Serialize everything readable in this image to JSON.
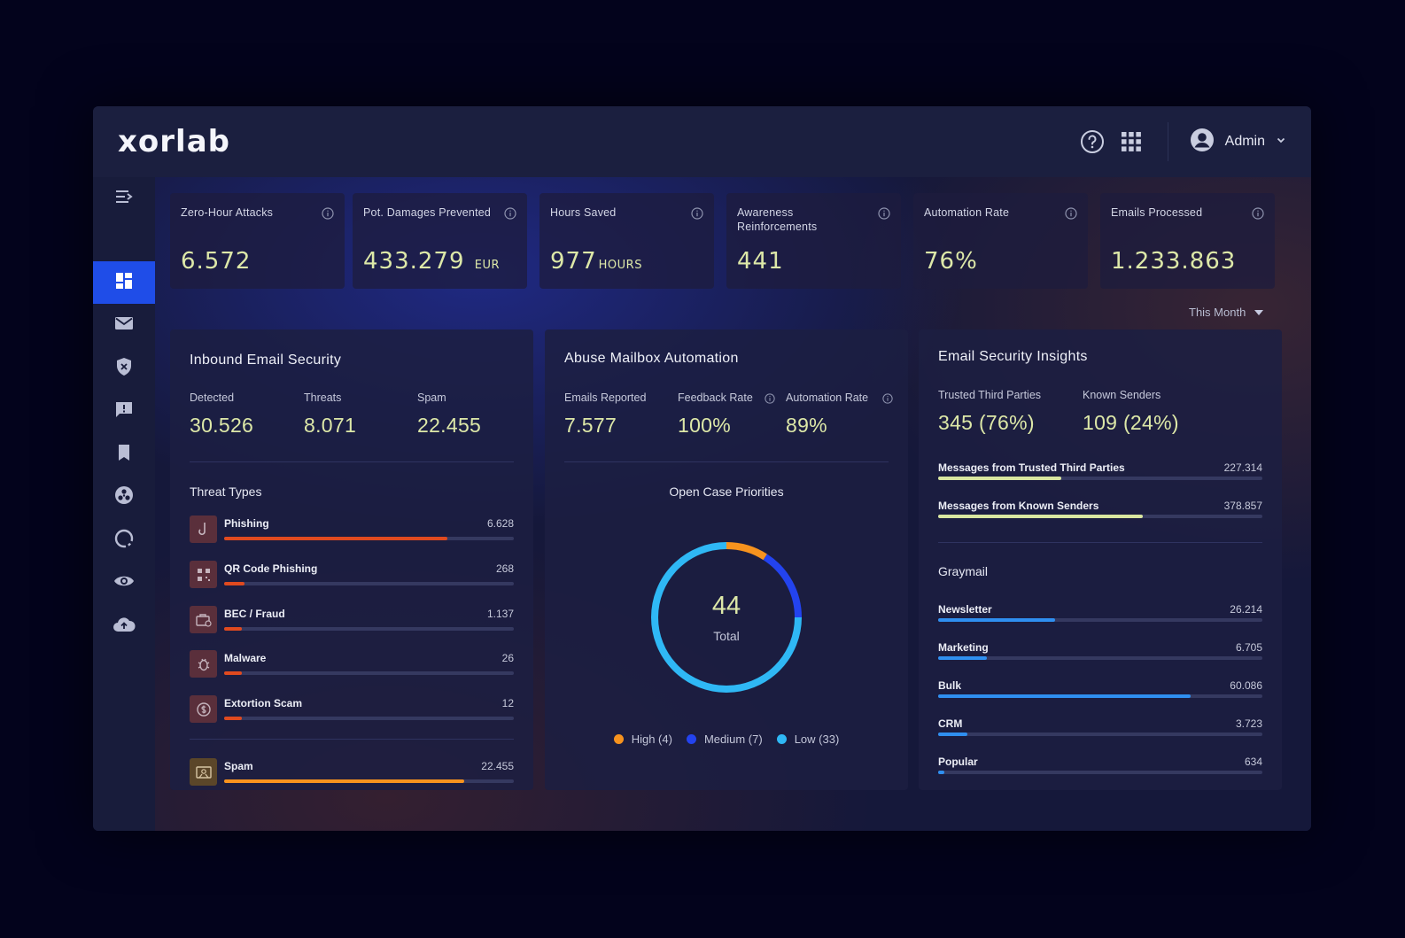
{
  "app": {
    "logo": "xorlab"
  },
  "topbar": {
    "user": "Admin",
    "help_icon": "help-circle-icon",
    "apps_icon": "apps-grid-icon"
  },
  "sidebar": {
    "items": [
      {
        "icon": "menu-collapse-icon"
      },
      {
        "icon": "dashboard-icon",
        "active": true
      },
      {
        "icon": "mail-icon"
      },
      {
        "icon": "shield-x-icon"
      },
      {
        "icon": "feedback-icon"
      },
      {
        "icon": "bookmark-icon"
      },
      {
        "icon": "biohazard-icon"
      },
      {
        "icon": "refresh-icon"
      },
      {
        "icon": "eye-icon"
      },
      {
        "icon": "cloud-upload-icon"
      }
    ]
  },
  "kpis": [
    {
      "label": "Zero-Hour Attacks",
      "value": "6.572",
      "unit": ""
    },
    {
      "label": "Pot. Damages Prevented",
      "value": "433.279",
      "unit": "EUR"
    },
    {
      "label": "Hours Saved",
      "value": "977",
      "unit": "HOURS"
    },
    {
      "label": "Awareness Reinforcements",
      "value": "441",
      "unit": ""
    },
    {
      "label": "Automation Rate",
      "value": "76%",
      "unit": ""
    },
    {
      "label": "Emails Processed",
      "value": "1.233.863",
      "unit": ""
    }
  ],
  "period": "This Month",
  "inbound": {
    "title": "Inbound Email Security",
    "stats": [
      {
        "label": "Detected",
        "value": "30.526"
      },
      {
        "label": "Threats",
        "value": "8.071"
      },
      {
        "label": "Spam",
        "value": "22.455"
      }
    ],
    "threat_types_title": "Threat Types",
    "threats": [
      {
        "name": "Phishing",
        "value": "6.628",
        "fraction": 0.77,
        "icon": "phishing-hook-icon",
        "color": "#e04a1f"
      },
      {
        "name": "QR Code Phishing",
        "value": "268",
        "fraction": 0.07,
        "icon": "qr-code-icon",
        "color": "#e04a1f"
      },
      {
        "name": "BEC / Fraud",
        "value": "1.137",
        "fraction": 0.06,
        "icon": "briefcase-alert-icon",
        "color": "#e04a1f"
      },
      {
        "name": "Malware",
        "value": "26",
        "fraction": 0.06,
        "icon": "bug-icon",
        "color": "#e04a1f"
      },
      {
        "name": "Extortion Scam",
        "value": "12",
        "fraction": 0.06,
        "icon": "dollar-circle-icon",
        "color": "#e04a1f"
      }
    ],
    "spam": {
      "name": "Spam",
      "value": "22.455",
      "fraction": 0.83,
      "icon": "spam-mail-icon",
      "color": "#f7931e"
    }
  },
  "abuse": {
    "title": "Abuse Mailbox Automation",
    "stats": [
      {
        "label": "Emails Reported",
        "value": "7.577"
      },
      {
        "label": "Feedback Rate",
        "value": "100%"
      },
      {
        "label": "Automation Rate",
        "value": "89%"
      }
    ],
    "donut_title": "Open Case Priorities",
    "total": "44",
    "total_label": "Total",
    "legend": [
      {
        "label": "High (4)",
        "color": "#f7931e"
      },
      {
        "label": "Medium (7)",
        "color": "#2343ef"
      },
      {
        "label": "Low (33)",
        "color": "#2fb8f5"
      }
    ]
  },
  "insights": {
    "title": "Email Security Insights",
    "stats": [
      {
        "label": "Trusted Third Parties",
        "value": "345 (76%)"
      },
      {
        "label": "Known Senders",
        "value": "109 (24%)"
      }
    ],
    "bars": [
      {
        "name": "Messages from Trusted Third Parties",
        "value": "227.314",
        "fraction": 0.38,
        "color": "#d9e6a0"
      },
      {
        "name": "Messages from Known Senders",
        "value": "378.857",
        "fraction": 0.63,
        "color": "#d9e6a0"
      }
    ],
    "graymail_title": "Graymail",
    "graymail": [
      {
        "name": "Newsletter",
        "value": "26.214",
        "fraction": 0.36,
        "color": "#2f8ff0"
      },
      {
        "name": "Marketing",
        "value": "6.705",
        "fraction": 0.15,
        "color": "#2f8ff0"
      },
      {
        "name": "Bulk",
        "value": "60.086",
        "fraction": 0.78,
        "color": "#2f8ff0"
      },
      {
        "name": "CRM",
        "value": "3.723",
        "fraction": 0.09,
        "color": "#2f8ff0"
      },
      {
        "name": "Popular",
        "value": "634",
        "fraction": 0.02,
        "color": "#2f8ff0"
      }
    ]
  }
}
